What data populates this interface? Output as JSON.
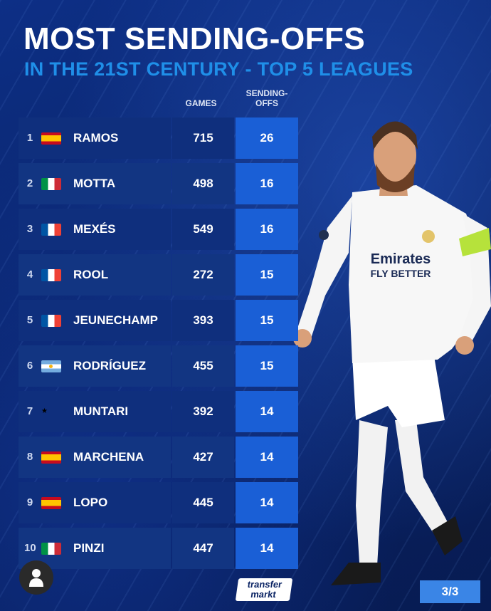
{
  "title": "MOST SENDING-OFFS",
  "subtitle": "IN THE 21ST CENTURY - TOP 5 LEAGUES",
  "columns": {
    "games": "GAMES",
    "sending_offs": "SENDING-\nOFFS"
  },
  "colors": {
    "accent_blue": "#1f8fe8",
    "row_bg": "#0f2f7d",
    "highlight_cell": "#1a5fd6",
    "page_badge": "#3a85e6"
  },
  "rows": [
    {
      "rank": "1",
      "flag": "spain",
      "name": "RAMOS",
      "games": "715",
      "sending_offs": "26"
    },
    {
      "rank": "2",
      "flag": "italy",
      "name": "MOTTA",
      "games": "498",
      "sending_offs": "16"
    },
    {
      "rank": "3",
      "flag": "france",
      "name": "MEXÉS",
      "games": "549",
      "sending_offs": "16"
    },
    {
      "rank": "4",
      "flag": "france",
      "name": "ROOL",
      "games": "272",
      "sending_offs": "15"
    },
    {
      "rank": "5",
      "flag": "france",
      "name": "JEUNECHAMP",
      "games": "393",
      "sending_offs": "15"
    },
    {
      "rank": "6",
      "flag": "argentina",
      "name": "RODRÍGUEZ",
      "games": "455",
      "sending_offs": "15"
    },
    {
      "rank": "7",
      "flag": "ghana",
      "name": "MUNTARI",
      "games": "392",
      "sending_offs": "14"
    },
    {
      "rank": "8",
      "flag": "spain",
      "name": "MARCHENA",
      "games": "427",
      "sending_offs": "14"
    },
    {
      "rank": "9",
      "flag": "spain",
      "name": "LOPO",
      "games": "445",
      "sending_offs": "14"
    },
    {
      "rank": "10",
      "flag": "italy",
      "name": "PINZI",
      "games": "447",
      "sending_offs": "14"
    }
  ],
  "player_shirt": {
    "sponsor_line1": "Emirates",
    "sponsor_line2": "FLY BETTER"
  },
  "brand": {
    "line1": "transfer",
    "line2": "markt"
  },
  "page_indicator": "3/3",
  "icons": {
    "profile": "user-avatar-icon"
  }
}
